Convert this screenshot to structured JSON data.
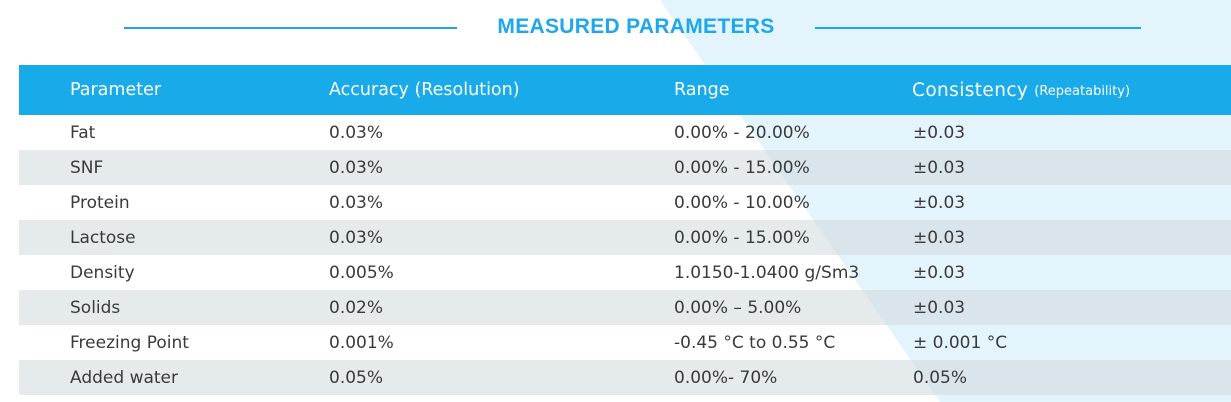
{
  "title": "MEASURED PARAMETERS",
  "colors": {
    "accent": "#1ea7ea",
    "header_bg": "#19abe9",
    "row_shade": "#dde3e7",
    "text": "#3a3a3a",
    "background_tint": "#e4f4fc"
  },
  "table": {
    "headers": {
      "parameter": "Parameter",
      "accuracy": "Accuracy (Resolution)",
      "range": "Range",
      "consistency": "Consistency",
      "consistency_sub": "(Repeatability)"
    },
    "rows": [
      {
        "parameter": "Fat",
        "accuracy": "0.03%",
        "range": "0.00% - 20.00%",
        "consistency": "±0.03"
      },
      {
        "parameter": "SNF",
        "accuracy": "0.03%",
        "range": "0.00% - 15.00%",
        "consistency": "±0.03"
      },
      {
        "parameter": "Protein",
        "accuracy": "0.03%",
        "range": "0.00% - 10.00%",
        "consistency": "±0.03"
      },
      {
        "parameter": "Lactose",
        "accuracy": "0.03%",
        "range": "0.00% - 15.00%",
        "consistency": "±0.03"
      },
      {
        "parameter": "Density",
        "accuracy": "0.005%",
        "range": "1.0150-1.0400 g/Sm3",
        "consistency": "±0.03"
      },
      {
        "parameter": "Solids",
        "accuracy": "0.02%",
        "range": "0.00% – 5.00%",
        "consistency": "±0.03"
      },
      {
        "parameter": "Freezing Point",
        "accuracy": "0.001%",
        "range": "-0.45 °C to 0.55 °C",
        "consistency": "± 0.001 °C"
      },
      {
        "parameter": "Added water",
        "accuracy": "0.05%",
        "range": "0.00%- 70%",
        "consistency": "0.05%"
      }
    ]
  }
}
